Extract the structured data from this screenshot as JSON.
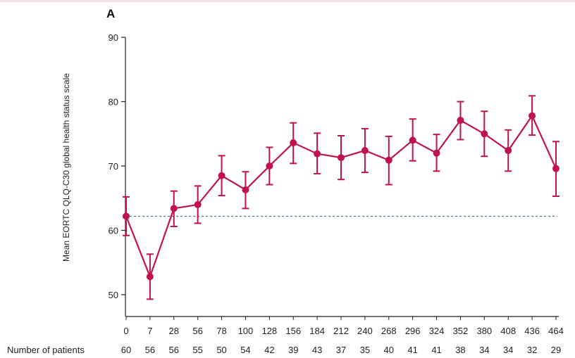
{
  "panel_label": "A",
  "series_color": "#c0134a",
  "reference_line_color": "#3a5a6a",
  "chart_data": {
    "type": "line",
    "ylabel": "Mean EORTC QLQ-C30 global health status scale",
    "ylim": [
      45,
      90
    ],
    "yticks": [
      50,
      60,
      70,
      80,
      90
    ],
    "reference_line": 62.2,
    "x": [
      0,
      7,
      28,
      56,
      78,
      100,
      128,
      156,
      184,
      212,
      240,
      268,
      296,
      324,
      352,
      380,
      408,
      436,
      464
    ],
    "values": [
      62.2,
      52.8,
      63.4,
      64.0,
      68.5,
      66.3,
      70.0,
      73.6,
      71.9,
      71.3,
      72.4,
      70.9,
      74.0,
      72.0,
      77.1,
      75.0,
      72.4,
      77.8,
      69.6
    ],
    "error_upper": [
      65.2,
      56.3,
      66.1,
      66.9,
      71.6,
      69.1,
      72.9,
      76.7,
      75.1,
      74.7,
      75.8,
      74.6,
      77.3,
      74.9,
      80.0,
      78.5,
      75.6,
      80.9,
      73.8
    ],
    "error_lower": [
      59.2,
      49.3,
      60.6,
      61.1,
      65.4,
      63.4,
      67.1,
      70.4,
      68.8,
      67.9,
      69.0,
      67.1,
      70.8,
      69.2,
      74.1,
      71.5,
      69.2,
      74.8,
      65.3
    ],
    "risk_table_label": "Number of patients",
    "n_patients": [
      60,
      56,
      56,
      55,
      50,
      54,
      42,
      39,
      43,
      37,
      35,
      40,
      41,
      41,
      38,
      34,
      34,
      32,
      29
    ]
  }
}
